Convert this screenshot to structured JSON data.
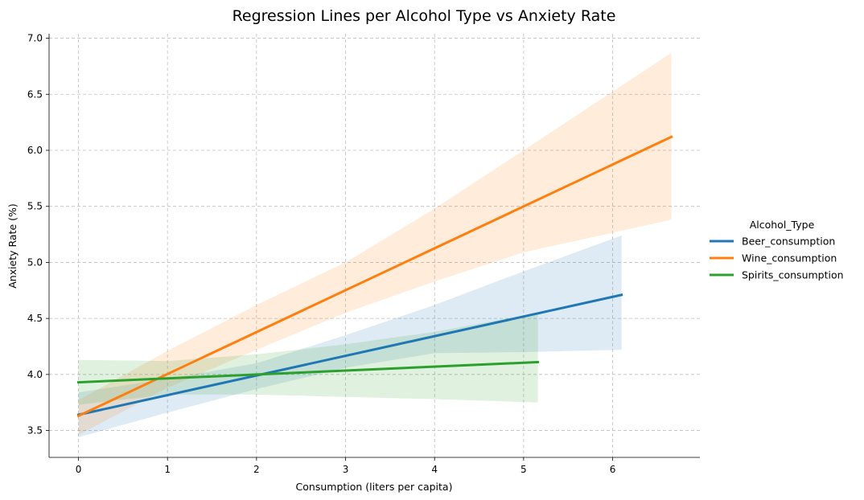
{
  "chart_data": {
    "type": "line",
    "title": "Regression Lines per Alcohol Type vs Anxiety Rate",
    "xlabel": "Consumption (liters per capita)",
    "ylabel": "Anxiety Rate (%)",
    "xlim": [
      -0.33,
      6.98
    ],
    "ylim": [
      3.26,
      7.04
    ],
    "xticks": [
      "0",
      "1",
      "2",
      "3",
      "4",
      "5",
      "6"
    ],
    "yticks": [
      "3.5",
      "4.0",
      "4.5",
      "5.0",
      "5.5",
      "6.0",
      "6.5",
      "7.0"
    ],
    "grid": true,
    "legend_title": "Alcohol_Type",
    "legend_position": "right",
    "series": [
      {
        "name": "Beer_consumption",
        "color": "#1f77b4",
        "x": [
          0,
          6.1
        ],
        "y": [
          3.64,
          4.71
        ],
        "ci_x": [
          0,
          1,
          2,
          3,
          4,
          5,
          6.1
        ],
        "ci_lower": [
          3.44,
          3.66,
          3.87,
          4.06,
          4.19,
          4.2,
          4.22
        ],
        "ci_upper": [
          3.84,
          3.96,
          4.1,
          4.35,
          4.62,
          4.92,
          5.24
        ]
      },
      {
        "name": "Wine_consumption",
        "color": "#ff7f0e",
        "x": [
          0,
          6.66
        ],
        "y": [
          3.63,
          6.12
        ],
        "ci_x": [
          0,
          1,
          2,
          3,
          4,
          5,
          6.66
        ],
        "ci_lower": [
          3.46,
          3.88,
          4.22,
          4.55,
          4.83,
          5.09,
          5.38
        ],
        "ci_upper": [
          3.77,
          4.21,
          4.62,
          5.0,
          5.48,
          6.0,
          6.87
        ]
      },
      {
        "name": "Spirits_consumption",
        "color": "#2ca02c",
        "x": [
          0,
          5.16
        ],
        "y": [
          3.93,
          4.11
        ],
        "ci_x": [
          0,
          1,
          2,
          3,
          4,
          5.16
        ],
        "ci_lower": [
          3.73,
          3.82,
          3.82,
          3.8,
          3.78,
          3.75
        ],
        "ci_upper": [
          4.13,
          4.12,
          4.18,
          4.27,
          4.38,
          4.55
        ]
      }
    ]
  }
}
